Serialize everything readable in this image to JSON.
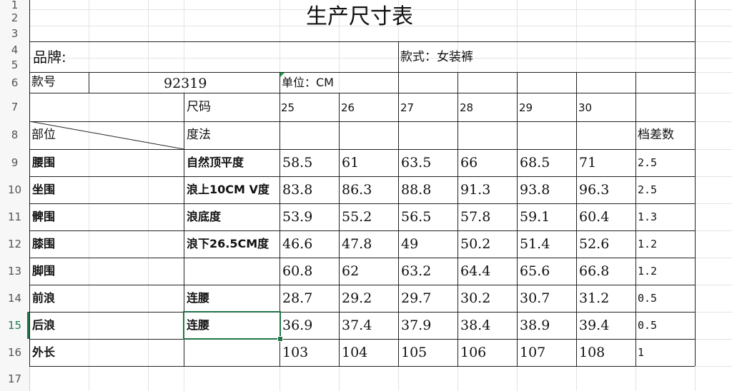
{
  "row_numbers": [
    "1",
    "2",
    "3",
    "4",
    "5",
    "6",
    "7",
    "8",
    "9",
    "10",
    "11",
    "12",
    "13",
    "14",
    "15",
    "16",
    "17"
  ],
  "active_row": "15",
  "title": "生产尺寸表",
  "brand_label": "品牌:",
  "style_label": "款式：女装裤",
  "model_label": "款号",
  "model_number": "92319",
  "unit_label": "单位：CM",
  "size_label": "尺码",
  "measure_label": "度法",
  "part_label": "部位",
  "sizes": [
    "25",
    "26",
    "27",
    "28",
    "29",
    "30"
  ],
  "grade_label": "档差数",
  "rows": [
    {
      "part": "腰围",
      "method": "自然顶平度",
      "values": [
        "58.5",
        "61",
        "63.5",
        "66",
        "68.5",
        "71"
      ],
      "grade": "2.5"
    },
    {
      "part": "坐围",
      "method": "浪上10CM V度",
      "values": [
        "83.8",
        "86.3",
        "88.8",
        "91.3",
        "93.8",
        "96.3"
      ],
      "grade": "2.5"
    },
    {
      "part": "髀围",
      "method": "浪底度",
      "values": [
        "53.9",
        "55.2",
        "56.5",
        "57.8",
        "59.1",
        "60.4"
      ],
      "grade": "1.3"
    },
    {
      "part": "膝围",
      "method": "浪下26.5CM度",
      "values": [
        "46.6",
        "47.8",
        "49",
        "50.2",
        "51.4",
        "52.6"
      ],
      "grade": "1.2"
    },
    {
      "part": "脚围",
      "method": "",
      "values": [
        "60.8",
        "62",
        "63.2",
        "64.4",
        "65.6",
        "66.8"
      ],
      "grade": "1.2"
    },
    {
      "part": "前浪",
      "method": "连腰",
      "values": [
        "28.7",
        "29.2",
        "29.7",
        "30.2",
        "30.7",
        "31.2"
      ],
      "grade": "0.5"
    },
    {
      "part": "后浪",
      "method": "连腰",
      "values": [
        "36.9",
        "37.4",
        "37.9",
        "38.4",
        "38.9",
        "39.4"
      ],
      "grade": "0.5"
    },
    {
      "part": "外长",
      "method": "",
      "values": [
        "103",
        "104",
        "105",
        "106",
        "107",
        "108"
      ],
      "grade": "1"
    }
  ],
  "colors": {
    "selection": "#217346",
    "border": "#222222",
    "gridline": "#e3e3e3"
  }
}
